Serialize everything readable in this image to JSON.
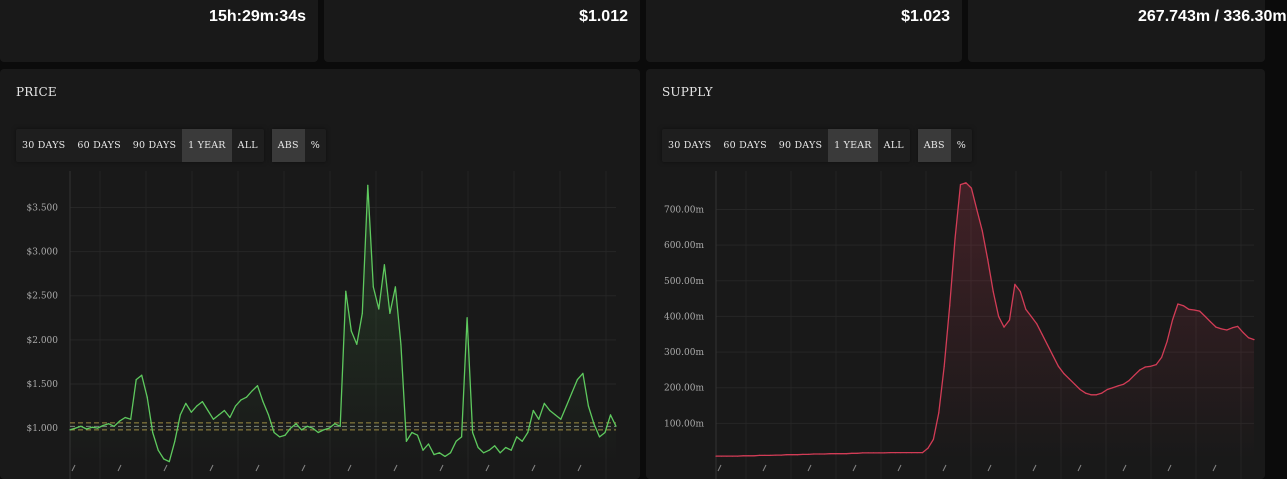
{
  "stats": [
    {
      "value": "15h:29m:34s"
    },
    {
      "value": "$1.012"
    },
    {
      "value": "$1.023"
    },
    {
      "value": "267.743m / 336.30m"
    }
  ],
  "price_panel": {
    "title": "PRICE",
    "range_buttons": [
      "30 DAYS",
      "60 DAYS",
      "90 DAYS",
      "1 YEAR",
      "ALL"
    ],
    "range_active": "1 YEAR",
    "mode_buttons": [
      "ABS",
      "%"
    ],
    "mode_active": "ABS"
  },
  "supply_panel": {
    "title": "SUPPLY",
    "range_buttons": [
      "30 DAYS",
      "60 DAYS",
      "90 DAYS",
      "1 YEAR",
      "ALL"
    ],
    "range_active": "1 YEAR",
    "mode_buttons": [
      "ABS",
      "%"
    ],
    "mode_active": "ABS"
  },
  "colors": {
    "price_line": "#5ec95e",
    "supply_line": "#d23c56",
    "ref_line_1": "#b8a14a",
    "ref_line_2": "#8f9a8f"
  },
  "chart_data": [
    {
      "type": "line",
      "name": "price",
      "ylim": [
        0.65,
        3.8
      ],
      "yticks": [
        1.0,
        1.5,
        2.0,
        2.5,
        3.0,
        3.5
      ],
      "ytick_labels": [
        "$1.000",
        "$1.500",
        "$2.000",
        "$2.500",
        "$3.000",
        "$3.500"
      ],
      "ref_lines": [
        1.06,
        1.02,
        0.98
      ],
      "grid": true,
      "x_count": 100,
      "values": [
        0.98,
        1.0,
        1.02,
        0.99,
        1.01,
        1.0,
        1.03,
        1.05,
        1.02,
        1.08,
        1.12,
        1.1,
        1.55,
        1.6,
        1.35,
        0.95,
        0.75,
        0.65,
        0.62,
        0.85,
        1.15,
        1.28,
        1.18,
        1.25,
        1.3,
        1.2,
        1.1,
        1.15,
        1.2,
        1.12,
        1.25,
        1.32,
        1.35,
        1.42,
        1.48,
        1.3,
        1.15,
        0.95,
        0.9,
        0.92,
        1.0,
        1.05,
        0.98,
        1.02,
        1.0,
        0.95,
        0.98,
        1.0,
        1.05,
        1.02,
        2.55,
        2.1,
        1.95,
        2.3,
        3.75,
        2.6,
        2.35,
        2.85,
        2.3,
        2.6,
        1.95,
        0.85,
        0.95,
        0.92,
        0.75,
        0.82,
        0.7,
        0.72,
        0.68,
        0.72,
        0.85,
        0.9,
        2.25,
        0.95,
        0.78,
        0.72,
        0.75,
        0.8,
        0.72,
        0.78,
        0.75,
        0.9,
        0.85,
        0.95,
        1.2,
        1.1,
        1.28,
        1.2,
        1.15,
        1.1,
        1.25,
        1.4,
        1.55,
        1.62,
        1.25,
        1.05,
        0.9,
        0.95,
        1.15,
        1.02
      ]
    },
    {
      "type": "area",
      "name": "supply",
      "ylim": [
        0,
        780
      ],
      "yticks": [
        100,
        200,
        300,
        400,
        500,
        600,
        700
      ],
      "ytick_labels": [
        "100.00m",
        "200.00m",
        "300.00m",
        "400.00m",
        "500.00m",
        "600.00m",
        "700.00m"
      ],
      "grid": true,
      "x_count": 100,
      "values": [
        8,
        8,
        8,
        8,
        8,
        9,
        9,
        9,
        10,
        10,
        10,
        11,
        11,
        12,
        12,
        12,
        13,
        13,
        14,
        14,
        14,
        15,
        15,
        15,
        15,
        16,
        16,
        17,
        17,
        17,
        17,
        17,
        18,
        18,
        18,
        18,
        18,
        18,
        18,
        30,
        55,
        130,
        260,
        430,
        620,
        770,
        775,
        760,
        700,
        640,
        560,
        470,
        400,
        370,
        390,
        490,
        470,
        420,
        400,
        380,
        350,
        320,
        290,
        260,
        240,
        225,
        210,
        195,
        185,
        180,
        180,
        185,
        195,
        200,
        205,
        210,
        220,
        235,
        250,
        258,
        260,
        265,
        285,
        330,
        390,
        435,
        430,
        420,
        418,
        415,
        400,
        385,
        370,
        365,
        362,
        368,
        372,
        355,
        340,
        335
      ]
    }
  ]
}
